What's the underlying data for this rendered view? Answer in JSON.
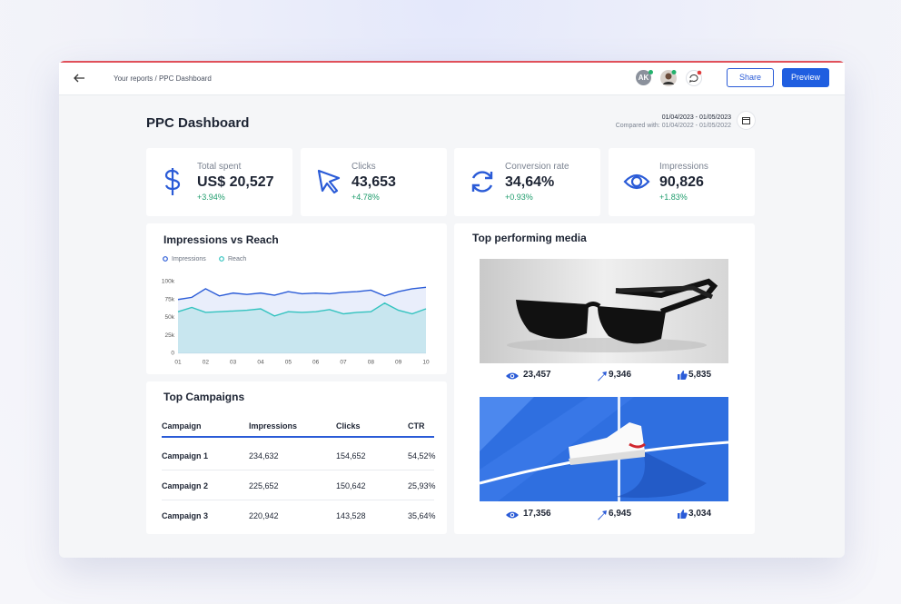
{
  "header": {
    "breadcrumb": "Your reports / PPC Dashboard",
    "avatar": "AK",
    "share": "Share",
    "preview": "Preview"
  },
  "dashboard": {
    "title": "PPC Dashboard",
    "date_range": "01/04/2023 - 01/05/2023",
    "compared": "Compared with: 01/04/2022 - 01/05/2022"
  },
  "kpis": [
    {
      "label": "Total spent",
      "value": "US$ 20,527",
      "change": "+3.94%"
    },
    {
      "label": "Clicks",
      "value": "43,653",
      "change": "+4.78%"
    },
    {
      "label": "Conversion rate",
      "value": "34,64%",
      "change": "+0.93%"
    },
    {
      "label": "Impressions",
      "value": "90,826",
      "change": "+1.83%"
    }
  ],
  "chart_data": {
    "type": "line",
    "title": "Impressions vs Reach",
    "categories": [
      "01",
      null,
      "02",
      null,
      "03",
      null,
      "04",
      null,
      "05",
      null,
      "06",
      null,
      "07",
      null,
      "08",
      null,
      "09",
      null,
      "10"
    ],
    "series": [
      {
        "name": "Impressions",
        "color": "#2a5bd7",
        "values": [
          75000,
          78000,
          90000,
          80000,
          84000,
          82000,
          84000,
          81000,
          86000,
          83000,
          84000,
          83000,
          85000,
          86000,
          88000,
          80000,
          86000,
          90000,
          92000
        ]
      },
      {
        "name": "Reach",
        "color": "#33c3bf",
        "values": [
          58000,
          64000,
          57000,
          58000,
          59000,
          60000,
          62000,
          52000,
          58000,
          57000,
          58000,
          61000,
          55000,
          57000,
          58000,
          70000,
          60000,
          55000,
          62000
        ]
      }
    ],
    "ylim": [
      0,
      100000
    ],
    "yticks": [
      0,
      {
        "value": 25000,
        "label": "25k"
      },
      {
        "value": 50000,
        "label": "50k"
      },
      {
        "value": 75000,
        "label": "75k"
      },
      {
        "value": 100000,
        "label": "100k"
      }
    ],
    "legend": "top-left"
  },
  "campaigns": {
    "title": "Top Campaigns",
    "columns": [
      "Campaign",
      "Impressions",
      "Clicks",
      "CTR"
    ],
    "rows": [
      [
        "Campaign 1",
        "234,632",
        "154,652",
        "54,52%"
      ],
      [
        "Campaign 2",
        "225,652",
        "150,642",
        "25,93%"
      ],
      [
        "Campaign 3",
        "220,942",
        "143,528",
        "35,64%"
      ]
    ]
  },
  "media": {
    "title": "Top performing media",
    "items": [
      {
        "views": "23,457",
        "shares": "9,346",
        "likes": "5,835"
      },
      {
        "views": "17,356",
        "shares": "6,945",
        "likes": "3,034"
      }
    ]
  }
}
